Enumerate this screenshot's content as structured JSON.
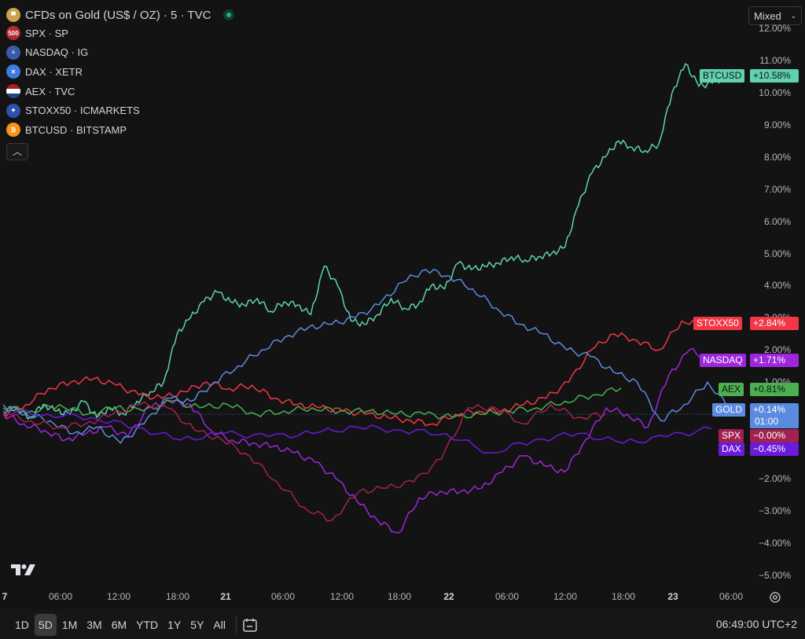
{
  "header": {
    "main_symbol": "CFDs on Gold (US$ / OZ) · 5 · TVC",
    "scale_mode": "Mixed"
  },
  "legend": [
    {
      "icon": "500",
      "label": "SPX · SP",
      "color": "#b22833"
    },
    {
      "icon": "us-flag-icon",
      "label": "NASDAQ · IG",
      "color": "#3c5aa8"
    },
    {
      "icon": "X",
      "label": "DAX · XETR",
      "color": "#3d7be0"
    },
    {
      "icon": "nl-flag-icon",
      "label": "AEX · TVC",
      "color": "#ae1c28"
    },
    {
      "icon": "eu-flag-icon",
      "label": "STOXX50 · ICMARKETS",
      "color": "#2d4fb0"
    },
    {
      "icon": "btc-icon",
      "label": "BTCUSD · BITSTAMP",
      "color": "#f7931a"
    }
  ],
  "y_axis": [
    "12.00%",
    "11.00%",
    "10.00%",
    "9.00%",
    "8.00%",
    "7.00%",
    "6.00%",
    "5.00%",
    "4.00%",
    "3.00%",
    "2.00%",
    "1.00%",
    "0.00%",
    "−1.00%",
    "−2.00%",
    "−3.00%",
    "−4.00%",
    "−5.00%"
  ],
  "x_axis": [
    "7",
    "06:00",
    "12:00",
    "18:00",
    "21",
    "06:00",
    "12:00",
    "18:00",
    "22",
    "06:00",
    "12:00",
    "18:00",
    "23",
    "06:00"
  ],
  "series_labels": [
    {
      "name": "BTCUSD",
      "value": "+10.58%",
      "color": "#5fd3b0"
    },
    {
      "name": "STOXX50",
      "value": "+2.84%",
      "color": "#f23645"
    },
    {
      "name": "NASDAQ",
      "value": "+1.71%",
      "color": "#9c27dc"
    },
    {
      "name": "AEX",
      "value": "+0.81%",
      "color": "#4caf50"
    },
    {
      "name": "GOLD",
      "value": "+0.14%",
      "time": "01:00",
      "color": "#5b8be0"
    },
    {
      "name": "SPX",
      "value": "−0.00%",
      "color": "#a2224f"
    },
    {
      "name": "DAX",
      "value": "−0.45%",
      "color": "#6a1bdc"
    }
  ],
  "toolbar": {
    "ranges": [
      "1D",
      "5D",
      "1M",
      "3M",
      "6M",
      "YTD",
      "1Y",
      "5Y",
      "All"
    ],
    "active_range": "5D",
    "clock": "06:49:00 UTC+2"
  },
  "chart_data": {
    "type": "line",
    "ylabel": "",
    "ylim": [
      -5.3,
      12.3
    ],
    "x_ticks": [
      "7",
      "06:00",
      "12:00",
      "18:00",
      "21",
      "06:00",
      "12:00",
      "18:00",
      "22",
      "06:00",
      "12:00",
      "18:00",
      "23",
      "06:00"
    ],
    "series": [
      {
        "name": "BTCUSD",
        "last": 10.58,
        "values": [
          0.1,
          0.2,
          -0.1,
          0.3,
          0.1,
          0.0,
          0.4,
          -0.1,
          0.2,
          0.0,
          0.4,
          0.7,
          1.0,
          2.5,
          3.0,
          3.5,
          3.8,
          3.5,
          3.4,
          3.6,
          3.2,
          3.5,
          3.4,
          3.1,
          4.6,
          4.0,
          2.9,
          2.8,
          3.1,
          3.6,
          3.3,
          3.4,
          4.0,
          3.9,
          4.7,
          4.5,
          4.6,
          4.7,
          4.9,
          4.8,
          4.9,
          5.0,
          5.2,
          6.5,
          7.5,
          8.0,
          8.5,
          8.3,
          8.2,
          8.4,
          10.0,
          10.9,
          10.2,
          10.3,
          10.5,
          10.6
        ]
      },
      {
        "name": "STOXX50",
        "last": 2.84,
        "values": [
          0.0,
          0.3,
          0.8,
          1.0,
          1.1,
          0.9,
          0.6,
          0.5,
          0.7,
          1.0,
          0.8,
          0.9,
          0.5,
          0.3,
          0.2,
          0.1,
          0.0,
          -0.1,
          -0.2,
          -0.3,
          0.0,
          0.1,
          0.1,
          0.3,
          0.5,
          1.0,
          2.0,
          2.5,
          2.3,
          2.0,
          2.9,
          2.8,
          2.8
        ]
      },
      {
        "name": "NASDAQ",
        "last": 1.71,
        "values": [
          0.0,
          -0.3,
          -0.5,
          -0.8,
          -0.6,
          -0.4,
          -0.7,
          0.2,
          0.4,
          0.3,
          -0.5,
          -0.8,
          -0.9,
          -1.0,
          -1.2,
          -1.5,
          -2.0,
          -2.7,
          -3.3,
          -3.7,
          -2.6,
          -2.4,
          -2.4,
          -2.3,
          -1.8,
          -1.3,
          -1.6,
          -1.8,
          -0.8,
          0.2,
          0.0,
          -0.4,
          1.2,
          2.0,
          1.7,
          1.7
        ]
      },
      {
        "name": "AEX",
        "last": 0.81,
        "values": [
          0.2,
          0.1,
          0.3,
          0.0,
          0.2,
          0.1,
          0.4,
          0.2,
          0.3,
          0.0,
          0.1,
          0.2,
          0.1,
          0.1,
          0.0,
          0.0,
          -0.1,
          0.0,
          0.1,
          0.2,
          0.4,
          0.6,
          0.81
        ]
      },
      {
        "name": "GOLD",
        "last": 0.14,
        "values": [
          0.3,
          0.0,
          -0.2,
          -0.6,
          -0.4,
          -0.9,
          -0.3,
          0.5,
          0.4,
          1.0,
          1.5,
          2.0,
          2.4,
          2.7,
          2.8,
          3.0,
          3.4,
          4.1,
          4.5,
          4.3,
          3.9,
          3.3,
          2.8,
          2.5,
          2.0,
          1.8,
          1.3,
          1.0,
          -0.2,
          0.3,
          1.0,
          0.14
        ]
      },
      {
        "name": "SPX",
        "last": -0.0,
        "values": [
          0.0,
          -0.2,
          -0.4,
          -0.3,
          0.0,
          0.3,
          0.2,
          -0.5,
          -0.8,
          -1.3,
          -2.1,
          -2.9,
          -3.3,
          -2.4,
          -2.3,
          -2.1,
          -1.4,
          0.2,
          0.2,
          -0.3,
          0.3,
          -0.1,
          0.0
        ]
      },
      {
        "name": "DAX",
        "last": -0.45,
        "values": [
          0.1,
          0.0,
          -0.1,
          -0.4,
          -0.8,
          -0.6,
          -0.7,
          -0.6,
          -0.4,
          -0.5,
          -0.6,
          -1.2,
          -0.8,
          -0.6,
          -0.9,
          -0.7,
          -0.45
        ]
      }
    ]
  }
}
